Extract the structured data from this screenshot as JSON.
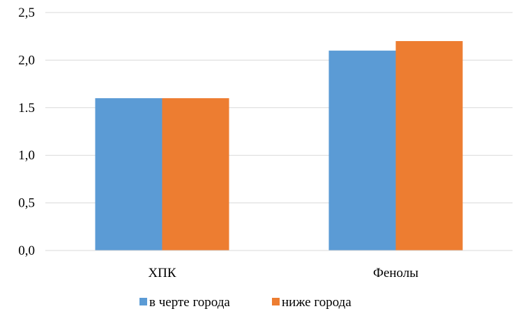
{
  "chart_data": {
    "type": "bar",
    "categories": [
      "ХПК",
      "Фенолы"
    ],
    "series": [
      {
        "name": "в черте города",
        "values": [
          1.6,
          2.1
        ],
        "color": "#5B9BD5"
      },
      {
        "name": "ниже города",
        "values": [
          1.6,
          2.2
        ],
        "color": "#ED7D31"
      }
    ],
    "y_ticks": [
      "0,0",
      "0,5",
      "1,0",
      "1.5",
      "2,0",
      "2,5"
    ],
    "ylim": [
      0,
      2.5
    ],
    "grid": true,
    "gridline_color": "#D9D9D9",
    "legend": "bottom",
    "title": "",
    "xlabel": "",
    "ylabel": ""
  }
}
